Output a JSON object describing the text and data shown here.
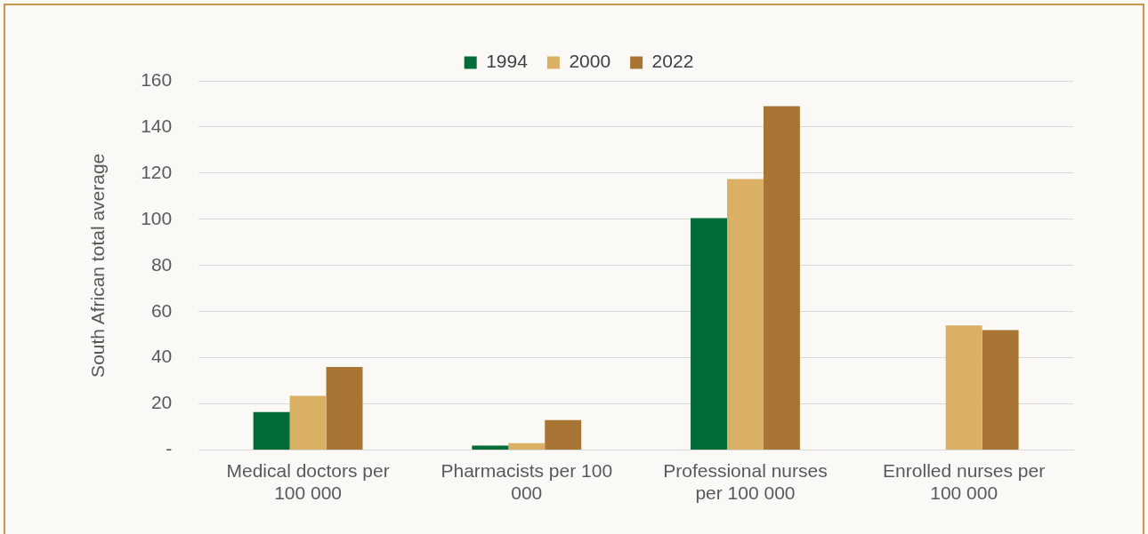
{
  "chart_data": {
    "type": "bar",
    "ylabel": "South African total average",
    "categories": [
      "Medical doctors per 100 000",
      "Pharmacists per 100 000",
      "Professional nurses per 100 000",
      "Enrolled nurses per 100 000"
    ],
    "series": [
      {
        "name": "1994",
        "color": "#036b35",
        "values": [
          16.5,
          2,
          100.5,
          null
        ]
      },
      {
        "name": "2000",
        "color": "#d9b064",
        "values": [
          23.5,
          3,
          117.5,
          54
        ]
      },
      {
        "name": "2022",
        "color": "#a87535",
        "values": [
          36,
          13,
          149,
          52
        ]
      }
    ],
    "ylim": [
      0,
      160
    ],
    "yticks": [
      {
        "value": 0,
        "label": "-"
      },
      20,
      40,
      60,
      80,
      100,
      120,
      140,
      160
    ],
    "grid": "y",
    "legend": "top"
  }
}
